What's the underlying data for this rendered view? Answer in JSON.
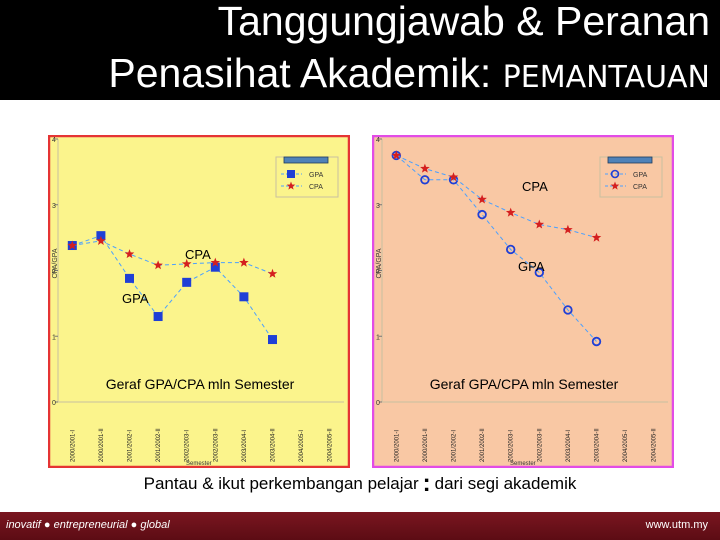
{
  "header": {
    "title_line1": "Tanggungjawab & Peranan",
    "title_line2": "Penasihat Akademik:",
    "title_line2_accent": "PEMANTAUAN",
    "accent_color": "#000000"
  },
  "caption": {
    "left": "Pantau & ikut perkembangan pelajar",
    "colon": ":",
    "right": "dari segi akademik"
  },
  "footer": {
    "left": "inovatif ● entrepreneurial ● global",
    "right": "www.utm.my",
    "color": "#6b101a"
  },
  "chart_data": [
    {
      "type": "line",
      "title": "Geraf GPA/CPA mln Semester",
      "xlabel": "Semester",
      "ylabel": "CPA/GPA",
      "ylim": [
        0,
        4
      ],
      "yticks": [
        0,
        1,
        2,
        3,
        4
      ],
      "categories": [
        "2000/2001-I",
        "2000/2001-II",
        "2001/2002-I",
        "2001/2002-II",
        "2002/2003-I",
        "2002/2003-II",
        "2003/2004-I",
        "2003/2004-II",
        "2004/2005-I",
        "2004/2005-II"
      ],
      "legend": [
        "GPA",
        "CPA"
      ],
      "legend_position": "top-right",
      "annotations": [
        "CPA",
        "GPA"
      ],
      "series": [
        {
          "name": "GPA",
          "marker": "square",
          "color": "#1f3fd6",
          "values": [
            2.38,
            2.53,
            1.88,
            1.3,
            1.82,
            2.05,
            1.6,
            0.95,
            null,
            null
          ]
        },
        {
          "name": "CPA",
          "marker": "star",
          "color": "#d41f1f",
          "values": [
            2.38,
            2.45,
            2.25,
            2.08,
            2.1,
            2.12,
            2.12,
            1.95,
            null,
            null
          ]
        }
      ],
      "background": "#fbf48c",
      "border": "#e53434"
    },
    {
      "type": "line",
      "title": "Geraf GPA/CPA mln Semester",
      "xlabel": "Semester",
      "ylabel": "CPA/GPA",
      "ylim": [
        0,
        4
      ],
      "yticks": [
        0,
        1,
        2,
        3,
        4
      ],
      "categories": [
        "2000/2001-I",
        "2000/2001-II",
        "2001/2002-I",
        "2001/2002-II",
        "2002/2003-I",
        "2002/2003-II",
        "2003/2004-I",
        "2003/2004-II",
        "2004/2005-I",
        "2004/2005-II"
      ],
      "legend": [
        "GPA",
        "CPA"
      ],
      "legend_position": "top-right",
      "annotations": [
        "CPA",
        "GPA"
      ],
      "series": [
        {
          "name": "GPA",
          "marker": "circle",
          "color": "#1f3fd6",
          "values": [
            3.75,
            3.38,
            3.38,
            2.85,
            2.32,
            1.97,
            1.4,
            0.92,
            null,
            null
          ]
        },
        {
          "name": "CPA",
          "marker": "star",
          "color": "#d41f1f",
          "values": [
            3.75,
            3.55,
            3.42,
            3.08,
            2.88,
            2.7,
            2.62,
            2.5,
            null,
            null
          ]
        }
      ],
      "background": "#f9c8a4",
      "border": "#e24ce6"
    }
  ]
}
